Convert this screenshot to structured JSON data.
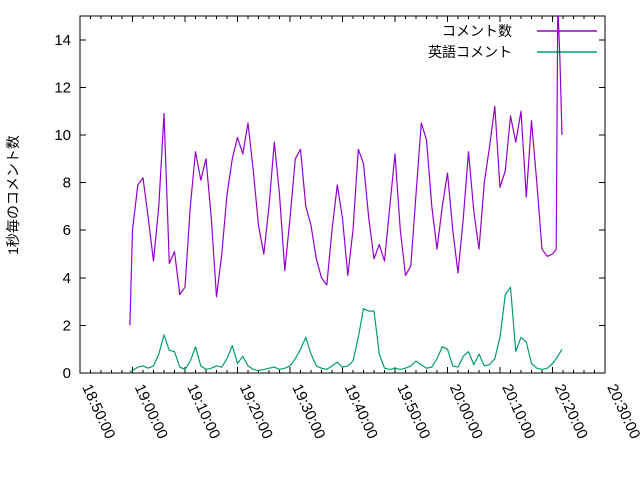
{
  "chart_data": {
    "type": "line",
    "title": "",
    "xlabel": "",
    "ylabel": "1秒毎のコメント数",
    "background": "#ffffff",
    "text_color": "#000000",
    "grid": false,
    "legend_position": "top-right",
    "x_axis_note": "minutes after 18:50:00",
    "xlim_minutes": [
      0,
      100
    ],
    "ylim": [
      0,
      15
    ],
    "x_tick_labels": [
      "18:50:00",
      "19:00:00",
      "19:10:00",
      "19:20:00",
      "19:30:00",
      "19:40:00",
      "19:50:00",
      "20:00:00",
      "20:10:00",
      "20:20:00",
      "20:30:00"
    ],
    "x_tick_minutes": [
      0,
      10,
      20,
      30,
      40,
      50,
      60,
      70,
      80,
      90,
      100
    ],
    "x_minor_step_minutes": 2,
    "y_ticks": [
      0,
      2,
      4,
      6,
      8,
      10,
      12,
      14
    ],
    "x_minutes": [
      9.5,
      10,
      11,
      12,
      13,
      14,
      15,
      16,
      17,
      18,
      19,
      20,
      21,
      22,
      23,
      24,
      25,
      26,
      27,
      28,
      29,
      30,
      31,
      32,
      33,
      34,
      35,
      36,
      37,
      38,
      39,
      40,
      41,
      42,
      43,
      44,
      45,
      46,
      47,
      48,
      49,
      50,
      51,
      52,
      53,
      54,
      55,
      56,
      57,
      58,
      59,
      60,
      61,
      62,
      63,
      64,
      65,
      66,
      67,
      68,
      69,
      70,
      71,
      72,
      73,
      74,
      75,
      76,
      77,
      78,
      79,
      80,
      81,
      82,
      83,
      84,
      85,
      86,
      87,
      88,
      89,
      90,
      90.7,
      91,
      91.4,
      91.8
    ],
    "series": [
      {
        "name": "コメント数",
        "color": "#9400d3",
        "values": [
          2.0,
          6.0,
          7.9,
          8.2,
          6.5,
          4.7,
          7.0,
          10.9,
          4.6,
          5.1,
          3.3,
          3.6,
          7.0,
          9.3,
          8.1,
          9.0,
          6.5,
          3.2,
          5.0,
          7.5,
          9.0,
          9.9,
          9.2,
          10.5,
          8.5,
          6.2,
          5.0,
          7.0,
          9.7,
          7.5,
          4.3,
          6.5,
          9.0,
          9.4,
          7.0,
          6.2,
          4.8,
          4.0,
          3.7,
          6.0,
          7.9,
          6.5,
          4.1,
          6.0,
          9.4,
          8.8,
          6.5,
          4.8,
          5.4,
          4.7,
          7.0,
          9.2,
          6.0,
          4.1,
          4.5,
          7.5,
          10.5,
          9.8,
          7.0,
          5.2,
          7.0,
          8.4,
          6.0,
          4.2,
          6.5,
          9.3,
          6.8,
          5.2,
          8.0,
          9.5,
          11.2,
          7.8,
          8.5,
          10.8,
          9.7,
          11.0,
          7.4,
          10.6,
          8.0,
          5.2,
          4.9,
          5.0,
          5.2,
          15.5,
          13.2,
          10.0
        ]
      },
      {
        "name": "英語コメント",
        "color": "#009e73",
        "values": [
          0.05,
          0.1,
          0.25,
          0.3,
          0.2,
          0.3,
          0.8,
          1.6,
          0.95,
          0.9,
          0.25,
          0.15,
          0.5,
          1.1,
          0.3,
          0.15,
          0.2,
          0.3,
          0.25,
          0.6,
          1.15,
          0.4,
          0.7,
          0.3,
          0.15,
          0.1,
          0.15,
          0.2,
          0.25,
          0.15,
          0.2,
          0.3,
          0.6,
          1.0,
          1.5,
          0.8,
          0.3,
          0.2,
          0.15,
          0.3,
          0.45,
          0.25,
          0.3,
          0.5,
          1.5,
          2.7,
          2.6,
          2.6,
          0.8,
          0.2,
          0.15,
          0.2,
          0.15,
          0.2,
          0.3,
          0.5,
          0.35,
          0.2,
          0.25,
          0.6,
          1.1,
          1.0,
          0.3,
          0.25,
          0.7,
          0.9,
          0.35,
          0.8,
          0.3,
          0.35,
          0.6,
          1.5,
          3.3,
          3.6,
          0.9,
          1.5,
          1.3,
          0.4,
          0.2,
          0.15,
          0.2,
          0.4,
          0.6,
          0.7,
          0.85,
          1.0
        ]
      }
    ]
  }
}
